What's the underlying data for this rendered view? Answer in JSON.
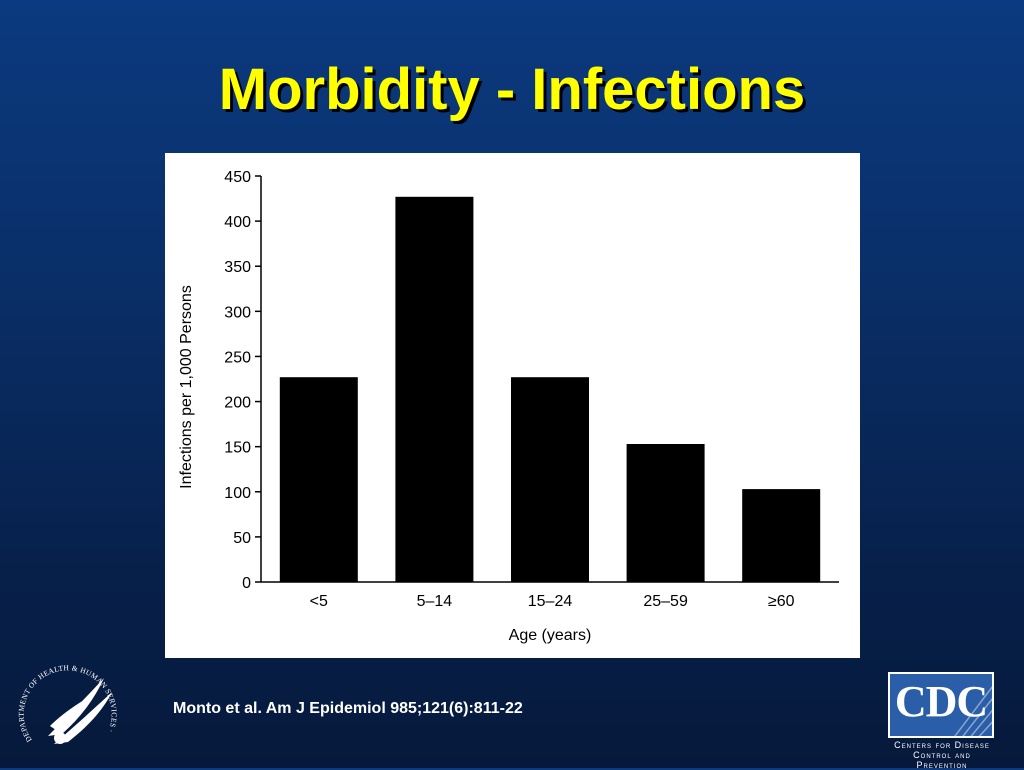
{
  "slide": {
    "title": "Morbidity - Infections",
    "citation": "Monto et al. Am J Epidemiol 985;121(6):811-22"
  },
  "logos": {
    "hhs_seal_text": "DEPARTMENT OF HEALTH & HUMAN SERVICES · USA",
    "cdc_mark": "CDC",
    "cdc_line1": "Centers for Disease",
    "cdc_line2": "Control and Prevention"
  },
  "colors": {
    "background_top": "#0b3a80",
    "background_bottom": "#06193b",
    "title": "#ffff00",
    "bars": "#000000",
    "panel": "#ffffff",
    "cdc_blue": "#2a5ea8"
  },
  "chart_data": {
    "type": "bar",
    "categories": [
      "<5",
      "5–14",
      "15–24",
      "25–59",
      "≥60"
    ],
    "values": [
      227,
      427,
      227,
      153,
      103
    ],
    "title": "",
    "xlabel": "Age (years)",
    "ylabel": "Infections per 1,000 Persons",
    "ylim": [
      0,
      450
    ],
    "yticks": [
      0,
      50,
      100,
      150,
      200,
      250,
      300,
      350,
      400,
      450
    ],
    "grid": false,
    "legend": "none"
  }
}
